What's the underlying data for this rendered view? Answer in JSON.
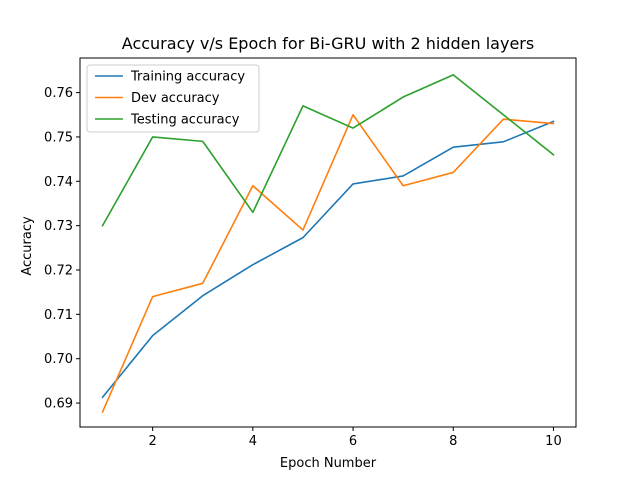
{
  "chart_data": {
    "type": "line",
    "title": "Accuracy v/s Epoch for Bi-GRU with 2 hidden layers",
    "xlabel": "Epoch Number",
    "ylabel": "Accuracy",
    "x": [
      1,
      2,
      3,
      4,
      5,
      6,
      7,
      8,
      9,
      10
    ],
    "xlim": [
      0.55,
      10.45
    ],
    "ylim": [
      0.6846,
      0.7678
    ],
    "xticks": [
      2,
      4,
      6,
      8,
      10
    ],
    "yticks": [
      0.69,
      0.7,
      0.71,
      0.72,
      0.73,
      0.74,
      0.75,
      0.76
    ],
    "xtick_labels": [
      "2",
      "4",
      "6",
      "8",
      "10"
    ],
    "ytick_labels": [
      "0.69",
      "0.70",
      "0.71",
      "0.72",
      "0.73",
      "0.74",
      "0.75",
      "0.76"
    ],
    "grid": false,
    "legend_position": "upper-left",
    "series": [
      {
        "name": "Training accuracy",
        "color": "#1f77b4",
        "values": [
          0.6913,
          0.7052,
          0.7142,
          0.7212,
          0.7273,
          0.7394,
          0.7412,
          0.7477,
          0.7489,
          0.7535
        ]
      },
      {
        "name": "Dev accuracy",
        "color": "#ff7f0e",
        "values": [
          0.688,
          0.714,
          0.717,
          0.739,
          0.729,
          0.755,
          0.739,
          0.742,
          0.754,
          0.753
        ]
      },
      {
        "name": "Testing accuracy",
        "color": "#2ca02c",
        "values": [
          0.73,
          0.75,
          0.749,
          0.733,
          0.757,
          0.752,
          0.759,
          0.764,
          0.755,
          0.746
        ]
      }
    ]
  }
}
